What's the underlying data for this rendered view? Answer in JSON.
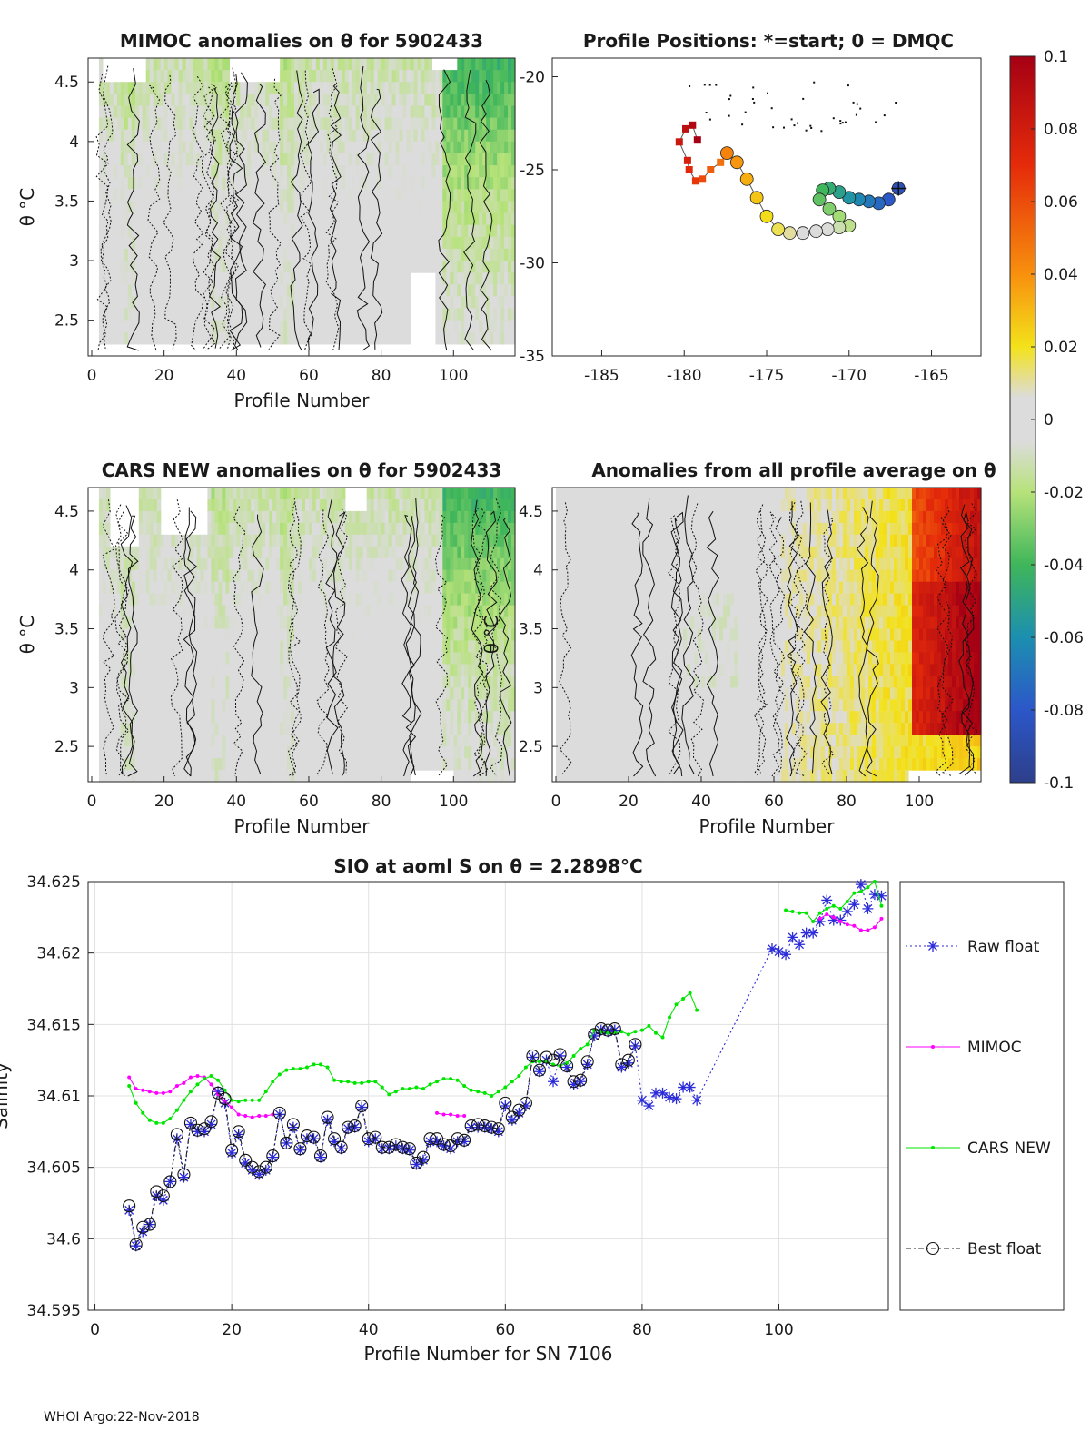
{
  "footer": "WHOI Argo:22-Nov-2018",
  "chart_data": [
    {
      "id": "mimoc",
      "type": "heatmap",
      "title": "MIMOC anomalies on θ  for 5902433",
      "xlabel": "Profile Number",
      "ylabel": "θ °C",
      "xlim": [
        -1,
        117
      ],
      "ylim": [
        2.2,
        4.7
      ],
      "xticks": [
        0,
        20,
        40,
        60,
        80,
        100
      ],
      "yticks": [
        2.5,
        3,
        3.5,
        4,
        4.5
      ],
      "description_values": "anomalies mostly 0 to -0.02 with -0.02 to -0.04 near profiles 100-115"
    },
    {
      "id": "positions",
      "type": "scatter",
      "title": "Profile Positions: *=start; 0 = DMQC",
      "xlim": [
        -188,
        -162
      ],
      "ylim": [
        -35,
        -19
      ],
      "xticks": [
        -185,
        -180,
        -175,
        -170,
        -165
      ],
      "yticks": [
        -35,
        -30,
        -25,
        -20
      ],
      "x": [
        -167,
        -167.6,
        -168.2,
        -168.8,
        -169.4,
        -170,
        -170.6,
        -171.2,
        -171.6,
        -171.8,
        -171.2,
        -170.6,
        -170,
        -170.6,
        -171.3,
        -172,
        -172.8,
        -173.6,
        -174.3,
        -175,
        -175.6,
        -176.2,
        -176.8,
        -177.4,
        -177.8,
        -178.4,
        -178.9,
        -179.3,
        -179.7,
        -179.8,
        -180.3,
        -179.9,
        -179.5,
        -179.2
      ],
      "y": [
        -26,
        -26.6,
        -26.8,
        -26.7,
        -26.6,
        -26.5,
        -26.2,
        -26,
        -26.1,
        -26.6,
        -27.1,
        -27.5,
        -28,
        -28.1,
        -28.2,
        -28.3,
        -28.4,
        -28.4,
        -28.2,
        -27.5,
        -26.5,
        -25.5,
        -24.6,
        -24.1,
        -24.6,
        -25,
        -25.5,
        -25.6,
        -25,
        -24.5,
        -23.5,
        -22.8,
        -22.6,
        -23.4
      ],
      "colorbar": {
        "ticks": [
          0.1,
          0.08,
          0.06,
          0.04,
          0.02,
          0,
          -0.02,
          -0.04,
          -0.06,
          -0.08,
          -0.1
        ],
        "tick_labels": [
          "0.1",
          "0.08",
          "0.06",
          "0.04",
          "0.02",
          "0",
          "-0.02",
          "-0.04",
          "-0.06",
          "-0.08",
          "-0.1"
        ]
      }
    },
    {
      "id": "cars",
      "type": "heatmap",
      "title": "CARS NEW anomalies on θ for 5902433",
      "xlabel": "Profile Number",
      "ylabel": "θ °C",
      "xlim": [
        -1,
        117
      ],
      "ylim": [
        2.2,
        4.7
      ],
      "xticks": [
        0,
        20,
        40,
        60,
        80,
        100
      ],
      "yticks": [
        2.5,
        3,
        3.5,
        4,
        4.5
      ]
    },
    {
      "id": "allavg",
      "type": "heatmap",
      "title": "Anomalies from all profile average on θ",
      "xlabel": "Profile Number",
      "ylabel": "θ °C",
      "xlim": [
        -1,
        117
      ],
      "ylim": [
        2.2,
        4.7
      ],
      "xticks": [
        0,
        20,
        40,
        60,
        80,
        100
      ],
      "yticks": [
        2.5,
        3,
        3.5,
        4,
        4.5
      ]
    },
    {
      "id": "salinity",
      "type": "line",
      "title": "SIO at aoml S on θ = 2.2898°C",
      "xlabel": "Profile Number for SN 7106",
      "ylabel": "Salinity",
      "xlim": [
        -1,
        116
      ],
      "ylim": [
        34.595,
        34.625
      ],
      "xticks": [
        0,
        20,
        40,
        60,
        80,
        100
      ],
      "yticks": [
        34.595,
        34.6,
        34.605,
        34.61,
        34.615,
        34.62,
        34.625
      ],
      "ytick_labels": [
        "34.595",
        "34.6",
        "34.605",
        "34.61",
        "34.615",
        "34.62",
        "34.625"
      ],
      "legend": [
        "Raw float",
        "MIMOC",
        "CARS NEW",
        "Best float"
      ],
      "series": [
        {
          "name": "Raw float",
          "x": [
            5,
            6,
            7,
            8,
            9,
            10,
            11,
            12,
            13,
            14,
            15,
            16,
            17,
            18,
            19,
            20,
            21,
            22,
            23,
            24,
            25,
            26,
            27,
            28,
            29,
            30,
            31,
            32,
            33,
            34,
            35,
            36,
            37,
            38,
            39,
            40,
            41,
            42,
            43,
            44,
            45,
            46,
            47,
            48,
            49,
            50,
            51,
            52,
            53,
            54,
            55,
            56,
            57,
            58,
            59,
            60,
            61,
            62,
            63,
            64,
            65,
            66,
            67,
            68,
            69,
            70,
            71,
            72,
            73,
            74,
            75,
            76,
            77,
            78,
            79,
            80,
            81,
            82,
            83,
            84,
            85,
            86,
            87,
            88,
            99,
            100,
            101,
            102,
            103,
            104,
            105,
            106,
            107,
            108,
            109,
            110,
            111,
            112,
            113,
            114,
            115
          ],
          "values": [
            34.602,
            34.5995,
            34.6005,
            34.601,
            34.603,
            34.6027,
            34.604,
            34.607,
            34.6043,
            34.608,
            34.6075,
            34.6075,
            34.608,
            34.6103,
            34.6095,
            34.606,
            34.6073,
            34.6053,
            34.6048,
            34.6045,
            34.6048,
            34.6057,
            34.6087,
            34.6067,
            34.6078,
            34.6062,
            34.607,
            34.607,
            34.6057,
            34.6083,
            34.6068,
            34.6063,
            34.6077,
            34.6078,
            34.6092,
            34.6068,
            34.607,
            34.6063,
            34.6063,
            34.6065,
            34.6063,
            34.6062,
            34.6052,
            34.6055,
            34.6068,
            34.6068,
            34.6065,
            34.6063,
            34.6068,
            34.6068,
            34.6078,
            34.6078,
            34.6078,
            34.6077,
            34.6075,
            34.6093,
            34.6083,
            34.6088,
            34.6093,
            34.6127,
            34.6117,
            34.6125,
            34.611,
            34.6128,
            34.612,
            34.6108,
            34.611,
            34.6122,
            34.6142,
            34.6146,
            34.6145,
            34.6146,
            34.612,
            34.6123,
            34.6135,
            34.6097,
            34.6093,
            34.6102,
            34.6102,
            34.6099,
            34.6098,
            34.6106,
            34.6106,
            34.6097,
            34.6203,
            34.6201,
            34.6199,
            34.6211,
            34.6206,
            34.6214,
            34.6214,
            34.6222,
            34.6237,
            34.6223,
            34.6223,
            34.6229,
            34.6234,
            34.6248,
            34.6231,
            34.6241,
            34.624
          ]
        },
        {
          "name": "MIMOC",
          "x": [
            5,
            6,
            7,
            8,
            9,
            10,
            11,
            12,
            13,
            14,
            15,
            16,
            17,
            18,
            19,
            20,
            21,
            22,
            23,
            24,
            25,
            26,
            50,
            51,
            52,
            53,
            54,
            106,
            107,
            108,
            109,
            110,
            111,
            112,
            113,
            114,
            115
          ],
          "values": [
            34.6113,
            34.6105,
            34.6104,
            34.6103,
            34.6102,
            34.6102,
            34.6103,
            34.6107,
            34.6109,
            34.6113,
            34.6114,
            34.6113,
            34.6108,
            34.6101,
            34.6096,
            34.6092,
            34.6087,
            34.6086,
            34.6085,
            34.6086,
            34.6086,
            34.6087,
            34.6088,
            34.6087,
            34.6087,
            34.6086,
            34.6086,
            34.6224,
            34.6227,
            34.6225,
            34.6222,
            34.622,
            34.6219,
            34.6216,
            34.6216,
            34.6218,
            34.6224
          ]
        },
        {
          "name": "CARS NEW",
          "x": [
            5,
            6,
            7,
            8,
            9,
            10,
            11,
            12,
            13,
            14,
            15,
            16,
            17,
            18,
            19,
            20,
            21,
            22,
            23,
            24,
            25,
            26,
            27,
            28,
            29,
            30,
            31,
            32,
            33,
            34,
            35,
            36,
            37,
            38,
            39,
            40,
            41,
            42,
            43,
            44,
            45,
            46,
            47,
            48,
            49,
            50,
            51,
            52,
            53,
            54,
            55,
            56,
            57,
            58,
            59,
            60,
            61,
            62,
            63,
            64,
            65,
            66,
            67,
            68,
            69,
            70,
            71,
            72,
            73,
            74,
            75,
            76,
            77,
            78,
            79,
            80,
            81,
            82,
            83,
            84,
            85,
            86,
            87,
            88,
            101,
            102,
            103,
            104,
            105,
            106,
            107,
            108,
            109,
            110,
            111,
            112,
            113,
            114,
            115
          ],
          "values": [
            34.6107,
            34.6095,
            34.6088,
            34.6083,
            34.6081,
            34.6081,
            34.6084,
            34.609,
            34.6097,
            34.6103,
            34.6108,
            34.6112,
            34.6114,
            34.6111,
            34.6104,
            34.6097,
            34.6096,
            34.6097,
            34.6097,
            34.6097,
            34.6103,
            34.611,
            34.6115,
            34.6118,
            34.6119,
            34.6119,
            34.612,
            34.6122,
            34.6122,
            34.612,
            34.6111,
            34.611,
            34.611,
            34.6109,
            34.6109,
            34.611,
            34.611,
            34.6106,
            34.6101,
            34.6103,
            34.6105,
            34.6105,
            34.6106,
            34.6105,
            34.6108,
            34.611,
            34.6112,
            34.6112,
            34.6111,
            34.6107,
            34.6104,
            34.6103,
            34.6102,
            34.61,
            34.6103,
            34.6106,
            34.611,
            34.6114,
            34.612,
            34.6124,
            34.6124,
            34.6124,
            34.6122,
            34.6121,
            34.6123,
            34.6128,
            34.6133,
            34.6136,
            34.6146,
            34.6145,
            34.6144,
            34.6144,
            34.6145,
            34.6143,
            34.6145,
            34.6146,
            34.6149,
            34.6144,
            34.6141,
            34.6155,
            34.6164,
            34.6168,
            34.6172,
            34.616,
            34.623,
            34.6229,
            34.6228,
            34.6228,
            34.6222,
            34.6228,
            34.6231,
            34.6233,
            34.6231,
            34.6236,
            34.6242,
            34.6243,
            34.6246,
            34.625,
            34.6233
          ]
        },
        {
          "name": "Best float",
          "x": [
            5,
            6,
            7,
            8,
            9,
            10,
            11,
            12,
            13,
            14,
            15,
            16,
            17,
            18,
            19,
            20,
            21,
            22,
            23,
            24,
            25,
            26,
            27,
            28,
            29,
            30,
            31,
            32,
            33,
            34,
            35,
            36,
            37,
            38,
            39,
            40,
            41,
            42,
            43,
            44,
            45,
            46,
            47,
            48,
            49,
            50,
            51,
            52,
            53,
            54,
            55,
            56,
            57,
            58,
            59,
            60,
            61,
            62,
            63,
            64,
            65,
            66,
            67,
            68,
            69,
            70,
            71,
            72,
            73,
            74,
            75,
            76,
            77,
            78,
            79
          ],
          "values": [
            34.6023,
            34.5996,
            34.6008,
            34.601,
            34.6033,
            34.603,
            34.604,
            34.6073,
            34.6045,
            34.6081,
            34.6076,
            34.6077,
            34.6082,
            34.6102,
            34.6098,
            34.6062,
            34.6075,
            34.6055,
            34.605,
            34.6047,
            34.605,
            34.6058,
            34.6088,
            34.6067,
            34.608,
            34.6063,
            34.6072,
            34.6071,
            34.6058,
            34.6085,
            34.607,
            34.6064,
            34.6078,
            34.6079,
            34.6093,
            34.607,
            34.6071,
            34.6064,
            34.6064,
            34.6066,
            34.6064,
            34.6063,
            34.6053,
            34.6057,
            34.607,
            34.607,
            34.6066,
            34.6065,
            34.607,
            34.6069,
            34.6079,
            34.608,
            34.6079,
            34.6078,
            34.6077,
            34.6095,
            34.6085,
            34.609,
            34.6095,
            34.6128,
            34.6118,
            34.6127,
            34.6125,
            34.6129,
            34.6121,
            34.611,
            34.6111,
            34.6124,
            34.6143,
            34.6147,
            34.6146,
            34.6147,
            34.6122,
            34.6125,
            34.6136
          ]
        }
      ]
    }
  ]
}
